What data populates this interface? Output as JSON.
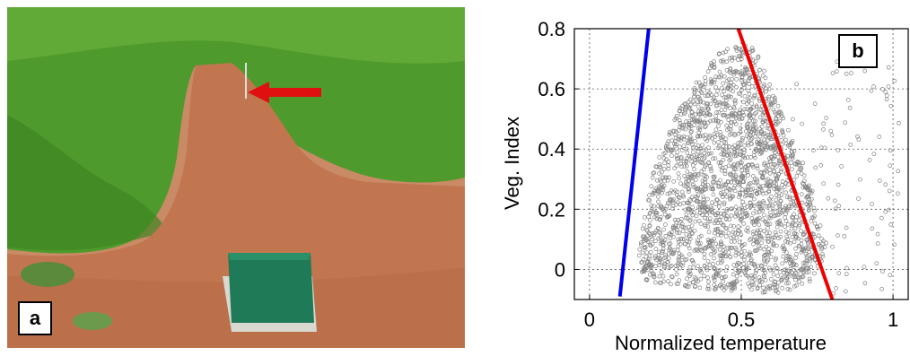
{
  "photo": {
    "panel_label": "a",
    "colors": {
      "crop": "#4f9a2c",
      "soil": "#c1764f",
      "box": "#1f7a57",
      "arrow": "#e01010"
    }
  },
  "chart_data": {
    "type": "scatter",
    "panel_label": "b",
    "title": "",
    "xlabel": "Normalized temperature",
    "ylabel": "Veg. Index",
    "xlim": [
      -0.05,
      1.05
    ],
    "ylim": [
      -0.1,
      0.8
    ],
    "xticks": [
      0,
      0.5,
      1
    ],
    "xtick_labels": [
      "0",
      "0.5",
      "1"
    ],
    "yticks": [
      0,
      0.2,
      0.4,
      0.6,
      0.8
    ],
    "ytick_labels": [
      "0",
      "0.2",
      "0.4",
      "0.6",
      "0.8"
    ],
    "grid": true,
    "point_color": "#808080",
    "cloud_x": [
      0.16,
      0.2,
      0.3,
      0.42,
      0.5,
      0.55,
      0.6,
      0.68,
      0.74,
      0.78,
      0.72,
      0.62,
      0.45,
      0.3,
      0.18
    ],
    "cloud_y": [
      0.05,
      0.3,
      0.55,
      0.72,
      0.75,
      0.73,
      0.6,
      0.4,
      0.25,
      0.05,
      -0.05,
      -0.08,
      -0.07,
      -0.06,
      -0.04
    ],
    "series": [
      {
        "name": "",
        "color": "#0000ee",
        "x": [
          0.1,
          0.195
        ],
        "y": [
          -0.09,
          0.8
        ]
      },
      {
        "name": "",
        "color": "#ee0000",
        "x": [
          0.49,
          0.8
        ],
        "y": [
          0.8,
          -0.1
        ]
      }
    ]
  }
}
